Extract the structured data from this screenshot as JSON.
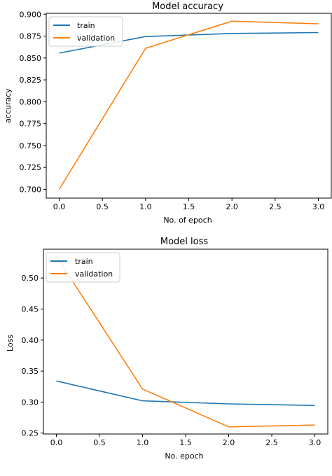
{
  "chart_data": [
    {
      "type": "line",
      "title": "Model accuracy",
      "xlabel": "No. of epoch",
      "ylabel": "accuracy",
      "x": [
        0,
        1,
        2,
        3
      ],
      "series": [
        {
          "name": "train",
          "color": "#1f77b4",
          "values": [
            0.8555,
            0.8745,
            0.878,
            0.879
          ]
        },
        {
          "name": "validation",
          "color": "#ff7f0e",
          "values": [
            0.7,
            0.861,
            0.892,
            0.889
          ]
        }
      ],
      "xlim": [
        -0.15,
        3.15
      ],
      "ylim": [
        0.69,
        0.901
      ],
      "xticks": [
        0.0,
        0.5,
        1.0,
        1.5,
        2.0,
        2.5,
        3.0
      ],
      "xtick_labels": [
        "0.0",
        "0.5",
        "1.0",
        "1.5",
        "2.0",
        "2.5",
        "3.0"
      ],
      "yticks": [
        0.7,
        0.725,
        0.75,
        0.775,
        0.8,
        0.825,
        0.85,
        0.875,
        0.9
      ],
      "ytick_labels": [
        "0.700",
        "0.725",
        "0.750",
        "0.775",
        "0.800",
        "0.825",
        "0.850",
        "0.875",
        "0.900"
      ],
      "legend_position": "top-left",
      "grid": false
    },
    {
      "type": "line",
      "title": "Model loss",
      "xlabel": "No. epoch",
      "ylabel": "Loss",
      "x": [
        0,
        1,
        2,
        3
      ],
      "series": [
        {
          "name": "train",
          "color": "#1f77b4",
          "values": [
            0.334,
            0.302,
            0.297,
            0.2945
          ]
        },
        {
          "name": "validation",
          "color": "#ff7f0e",
          "values": [
            0.535,
            0.321,
            0.26,
            0.263
          ]
        }
      ],
      "xlim": [
        -0.15,
        3.15
      ],
      "ylim": [
        0.2485,
        0.5465
      ],
      "xticks": [
        0.0,
        0.5,
        1.0,
        1.5,
        2.0,
        2.5,
        3.0
      ],
      "xtick_labels": [
        "0.0",
        "0.5",
        "1.0",
        "1.5",
        "2.0",
        "2.5",
        "3.0"
      ],
      "yticks": [
        0.25,
        0.3,
        0.35,
        0.4,
        0.45,
        0.5
      ],
      "ytick_labels": [
        "0.25",
        "0.30",
        "0.35",
        "0.40",
        "0.45",
        "0.50"
      ],
      "legend_position": "top-left",
      "grid": false
    }
  ]
}
